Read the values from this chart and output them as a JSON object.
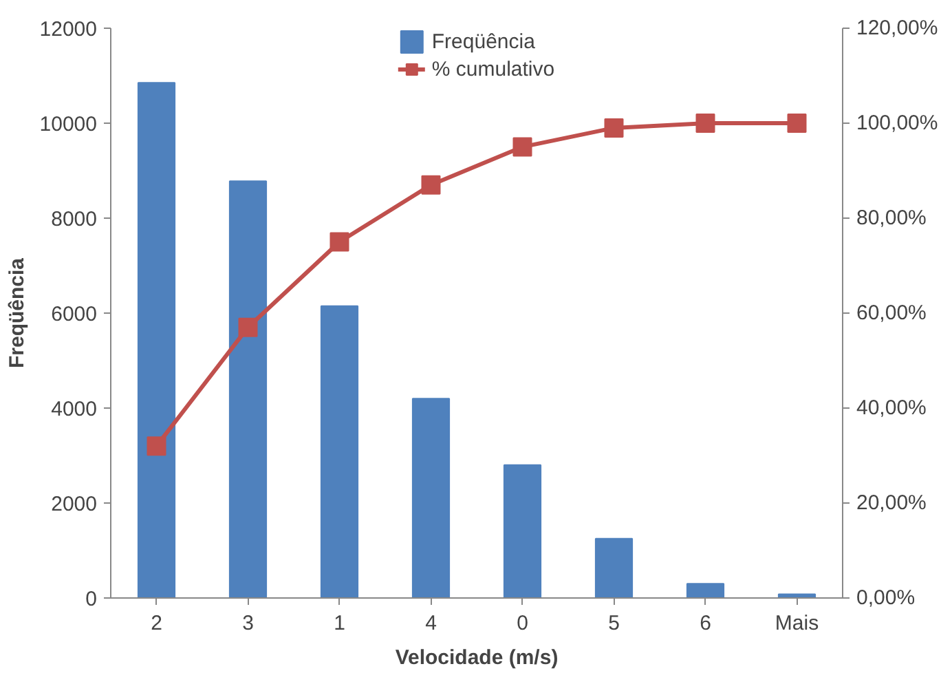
{
  "chart_data": {
    "type": "bar",
    "xlabel": "Velocidade (m/s)",
    "ylabel": "Freqüência",
    "categories": [
      "2",
      "3",
      "1",
      "4",
      "0",
      "5",
      "6",
      "Mais"
    ],
    "series": [
      {
        "name": "Freqüência",
        "color": "#4f81bd",
        "values": [
          10850,
          8780,
          6150,
          4200,
          2800,
          1250,
          300,
          80
        ]
      },
      {
        "name": "% cumulativo",
        "type": "line",
        "axis": "y2",
        "color": "#c0504d",
        "marker": "square",
        "line_style": "solid",
        "values": [
          32,
          57,
          75,
          87,
          95,
          99,
          100,
          100
        ]
      }
    ],
    "ylim": [
      0,
      12000
    ],
    "yticks": [
      0,
      2000,
      4000,
      6000,
      8000,
      10000,
      12000
    ],
    "y2lim": [
      0,
      120
    ],
    "y2ticks": [
      {
        "value": 0,
        "label": "0,00%"
      },
      {
        "value": 20,
        "label": "20,00%"
      },
      {
        "value": 40,
        "label": "40,00%"
      },
      {
        "value": 60,
        "label": "60,00%"
      },
      {
        "value": 80,
        "label": "80,00%"
      },
      {
        "value": 100,
        "label": "100,00%"
      },
      {
        "value": 120,
        "label": "120,00%"
      }
    ],
    "grid": false,
    "legend": "top"
  }
}
